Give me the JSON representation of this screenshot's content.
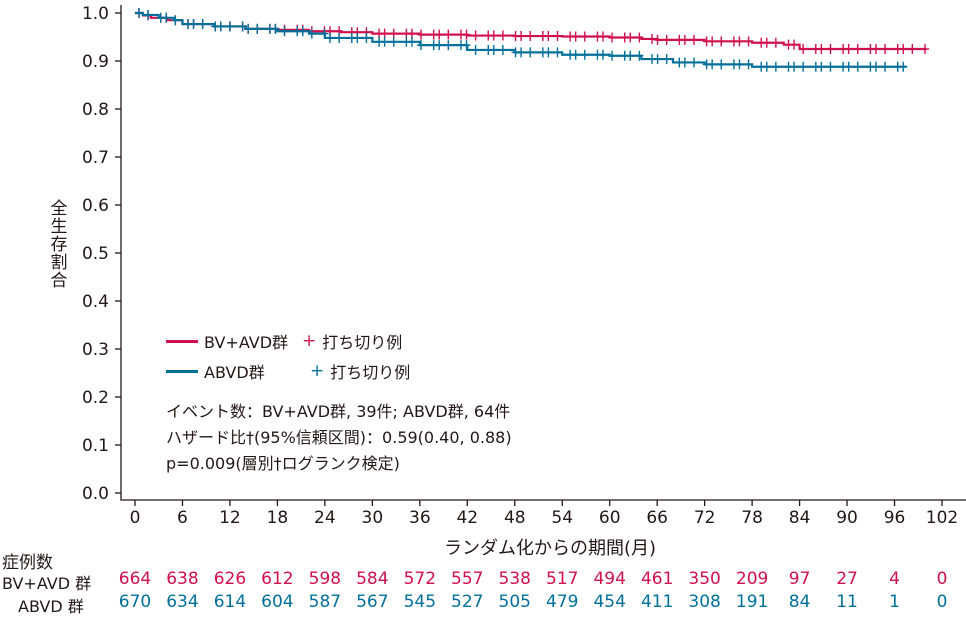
{
  "chart_data": {
    "type": "line",
    "ylabel": "全生存割合",
    "xlabel": "ランダム化からの期間(月)",
    "ylim": [
      0,
      1.0
    ],
    "xlim": [
      0,
      102
    ],
    "yticks": [
      "0.0",
      "0.1",
      "0.2",
      "0.3",
      "0.4",
      "0.5",
      "0.6",
      "0.7",
      "0.8",
      "0.9",
      "1.0"
    ],
    "xticks": [
      "0",
      "6",
      "12",
      "18",
      "24",
      "30",
      "36",
      "42",
      "48",
      "54",
      "60",
      "66",
      "72",
      "78",
      "84",
      "90",
      "96",
      "102"
    ],
    "series": [
      {
        "name": "BV+AVD群",
        "color": "#d0104c",
        "x": [
          0,
          1,
          2,
          4,
          6,
          10,
          14,
          18,
          22,
          26,
          30,
          36,
          42,
          48,
          54,
          60,
          64,
          66,
          72,
          78,
          82,
          84,
          90,
          96,
          100
        ],
        "y": [
          1.0,
          0.995,
          0.99,
          0.985,
          0.977,
          0.972,
          0.967,
          0.965,
          0.962,
          0.96,
          0.957,
          0.955,
          0.953,
          0.952,
          0.951,
          0.949,
          0.946,
          0.944,
          0.941,
          0.938,
          0.934,
          0.925,
          0.925,
          0.925,
          0.925
        ]
      },
      {
        "name": "ABVD群",
        "color": "#00709a",
        "x": [
          0,
          1,
          3,
          5,
          6,
          10,
          14,
          18,
          22,
          24,
          30,
          36,
          42,
          48,
          54,
          60,
          64,
          68,
          72,
          78,
          84,
          90,
          96,
          97.5
        ],
        "y": [
          1.0,
          0.996,
          0.99,
          0.985,
          0.977,
          0.972,
          0.967,
          0.962,
          0.957,
          0.948,
          0.94,
          0.933,
          0.923,
          0.918,
          0.913,
          0.911,
          0.904,
          0.897,
          0.893,
          0.888,
          0.888,
          0.888,
          0.888,
          0.888
        ]
      }
    ],
    "legend": {
      "position": "lower-left",
      "bv_label": "BV+AVD群",
      "abvd_label": "ABVD群",
      "plus": "+",
      "censor_label": "打ち切り例"
    },
    "annotations": [
      "イベント数：BV+AVD群, 39件; ABVD群, 64件",
      "ハザード比†(95%信頼区間)：0.59(0.40, 0.88)",
      "p=0.009(層別†ログランク検定)"
    ]
  },
  "risk_table": {
    "title": "症例数",
    "rows": [
      {
        "label": "BV+AVD 群",
        "color": "#d0104c",
        "values": [
          "664",
          "638",
          "626",
          "612",
          "598",
          "584",
          "572",
          "557",
          "538",
          "517",
          "494",
          "461",
          "350",
          "209",
          "97",
          "27",
          "4",
          "0"
        ]
      },
      {
        "label": "ABVD 群",
        "color": "#00709a",
        "values": [
          "670",
          "634",
          "614",
          "604",
          "587",
          "567",
          "545",
          "527",
          "505",
          "479",
          "454",
          "411",
          "308",
          "191",
          "84",
          "11",
          "1",
          "0"
        ]
      }
    ]
  }
}
